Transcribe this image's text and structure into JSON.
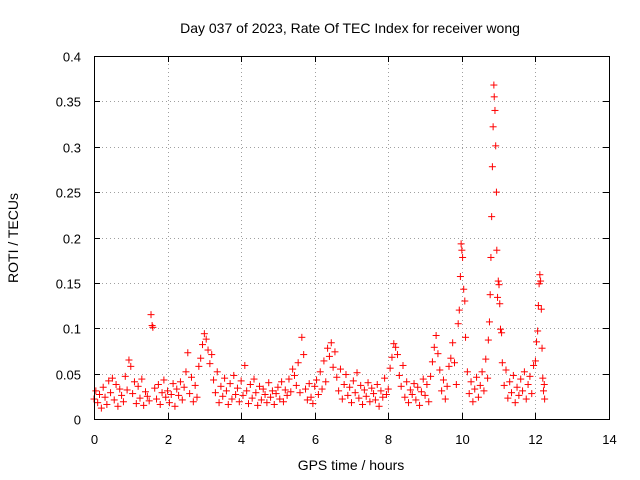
{
  "chart_data": {
    "type": "scatter",
    "title": "Day 037 of 2023, Rate Of TEC Index for receiver wong",
    "xlabel": "GPS time / hours",
    "ylabel": "ROTI / TECUs",
    "xlim": [
      0,
      14
    ],
    "ylim": [
      0,
      0.4
    ],
    "xticks": [
      0,
      2,
      4,
      6,
      8,
      10,
      12,
      14
    ],
    "yticks": [
      0,
      0.05,
      0.1,
      0.15,
      0.2,
      0.25,
      0.3,
      0.35,
      0.4
    ],
    "ytick_labels": [
      "0",
      "0.05",
      "0.1",
      "0.15",
      "0.2",
      "0.25",
      "0.3",
      "0.35",
      "0.4"
    ],
    "grid": true,
    "marker": "plus",
    "color": "#ff0000",
    "series": [
      {
        "points": [
          [
            0.0,
            0.022
          ],
          [
            0.05,
            0.031
          ],
          [
            0.1,
            0.018
          ],
          [
            0.15,
            0.027
          ],
          [
            0.2,
            0.012
          ],
          [
            0.25,
            0.035
          ],
          [
            0.3,
            0.024
          ],
          [
            0.35,
            0.016
          ],
          [
            0.4,
            0.042
          ],
          [
            0.45,
            0.029
          ],
          [
            0.5,
            0.045
          ],
          [
            0.55,
            0.021
          ],
          [
            0.6,
            0.038
          ],
          [
            0.65,
            0.014
          ],
          [
            0.7,
            0.033
          ],
          [
            0.75,
            0.026
          ],
          [
            0.8,
            0.019
          ],
          [
            0.85,
            0.047
          ],
          [
            0.9,
            0.032
          ],
          [
            0.95,
            0.065
          ],
          [
            1.0,
            0.058
          ],
          [
            1.05,
            0.028
          ],
          [
            1.1,
            0.041
          ],
          [
            1.15,
            0.017
          ],
          [
            1.2,
            0.036
          ],
          [
            1.25,
            0.023
          ],
          [
            1.3,
            0.044
          ],
          [
            1.35,
            0.015
          ],
          [
            1.4,
            0.03
          ],
          [
            1.45,
            0.025
          ],
          [
            1.5,
            0.02
          ],
          [
            1.55,
            0.115
          ],
          [
            1.58,
            0.103
          ],
          [
            1.6,
            0.101
          ],
          [
            1.65,
            0.034
          ],
          [
            1.7,
            0.022
          ],
          [
            1.75,
            0.038
          ],
          [
            1.8,
            0.016
          ],
          [
            1.85,
            0.029
          ],
          [
            1.9,
            0.043
          ],
          [
            1.95,
            0.024
          ],
          [
            2.0,
            0.031
          ],
          [
            2.05,
            0.018
          ],
          [
            2.1,
            0.027
          ],
          [
            2.15,
            0.039
          ],
          [
            2.2,
            0.014
          ],
          [
            2.25,
            0.033
          ],
          [
            2.3,
            0.026
          ],
          [
            2.35,
            0.041
          ],
          [
            2.4,
            0.021
          ],
          [
            2.45,
            0.035
          ],
          [
            2.5,
            0.052
          ],
          [
            2.55,
            0.073
          ],
          [
            2.6,
            0.028
          ],
          [
            2.65,
            0.046
          ],
          [
            2.7,
            0.019
          ],
          [
            2.75,
            0.037
          ],
          [
            2.8,
            0.024
          ],
          [
            2.85,
            0.058
          ],
          [
            2.9,
            0.067
          ],
          [
            2.95,
            0.082
          ],
          [
            3.0,
            0.094
          ],
          [
            3.05,
            0.088
          ],
          [
            3.1,
            0.076
          ],
          [
            3.15,
            0.061
          ],
          [
            3.2,
            0.071
          ],
          [
            3.25,
            0.043
          ],
          [
            3.3,
            0.029
          ],
          [
            3.35,
            0.052
          ],
          [
            3.4,
            0.018
          ],
          [
            3.45,
            0.036
          ],
          [
            3.5,
            0.025
          ],
          [
            3.55,
            0.045
          ],
          [
            3.6,
            0.031
          ],
          [
            3.65,
            0.016
          ],
          [
            3.7,
            0.039
          ],
          [
            3.75,
            0.022
          ],
          [
            3.8,
            0.048
          ],
          [
            3.85,
            0.027
          ],
          [
            3.9,
            0.034
          ],
          [
            3.95,
            0.019
          ],
          [
            4.0,
            0.042
          ],
          [
            4.05,
            0.026
          ],
          [
            4.1,
            0.059
          ],
          [
            4.15,
            0.031
          ],
          [
            4.2,
            0.017
          ],
          [
            4.25,
            0.038
          ],
          [
            4.3,
            0.023
          ],
          [
            4.35,
            0.044
          ],
          [
            4.4,
            0.029
          ],
          [
            4.45,
            0.015
          ],
          [
            4.5,
            0.036
          ],
          [
            4.55,
            0.021
          ],
          [
            4.6,
            0.033
          ],
          [
            4.65,
            0.027
          ],
          [
            4.7,
            0.018
          ],
          [
            4.75,
            0.04
          ],
          [
            4.8,
            0.024
          ],
          [
            4.85,
            0.031
          ],
          [
            4.9,
            0.016
          ],
          [
            4.95,
            0.028
          ],
          [
            5.0,
            0.035
          ],
          [
            5.05,
            0.022
          ],
          [
            5.1,
            0.041
          ],
          [
            5.15,
            0.019
          ],
          [
            5.2,
            0.032
          ],
          [
            5.25,
            0.026
          ],
          [
            5.3,
            0.044
          ],
          [
            5.35,
            0.03
          ],
          [
            5.4,
            0.055
          ],
          [
            5.45,
            0.048
          ],
          [
            5.5,
            0.037
          ],
          [
            5.55,
            0.062
          ],
          [
            5.6,
            0.029
          ],
          [
            5.65,
            0.09
          ],
          [
            5.7,
            0.071
          ],
          [
            5.75,
            0.033
          ],
          [
            5.8,
            0.021
          ],
          [
            5.85,
            0.039
          ],
          [
            5.9,
            0.024
          ],
          [
            5.95,
            0.017
          ],
          [
            6.0,
            0.036
          ],
          [
            6.05,
            0.043
          ],
          [
            6.1,
            0.027
          ],
          [
            6.15,
            0.052
          ],
          [
            6.2,
            0.033
          ],
          [
            6.25,
            0.064
          ],
          [
            6.3,
            0.041
          ],
          [
            6.35,
            0.078
          ],
          [
            6.4,
            0.069
          ],
          [
            6.45,
            0.084
          ],
          [
            6.5,
            0.057
          ],
          [
            6.55,
            0.074
          ],
          [
            6.6,
            0.046
          ],
          [
            6.65,
            0.031
          ],
          [
            6.7,
            0.055
          ],
          [
            6.75,
            0.022
          ],
          [
            6.8,
            0.038
          ],
          [
            6.85,
            0.049
          ],
          [
            6.9,
            0.026
          ],
          [
            6.95,
            0.035
          ],
          [
            7.0,
            0.018
          ],
          [
            7.05,
            0.042
          ],
          [
            7.1,
            0.029
          ],
          [
            7.15,
            0.051
          ],
          [
            7.2,
            0.023
          ],
          [
            7.25,
            0.037
          ],
          [
            7.3,
            0.016
          ],
          [
            7.35,
            0.032
          ],
          [
            7.4,
            0.025
          ],
          [
            7.45,
            0.04
          ],
          [
            7.5,
            0.019
          ],
          [
            7.55,
            0.034
          ],
          [
            7.6,
            0.028
          ],
          [
            7.65,
            0.021
          ],
          [
            7.7,
            0.038
          ],
          [
            7.75,
            0.014
          ],
          [
            7.8,
            0.031
          ],
          [
            7.85,
            0.024
          ],
          [
            7.9,
            0.045
          ],
          [
            7.95,
            0.027
          ],
          [
            8.0,
            0.033
          ],
          [
            8.05,
            0.056
          ],
          [
            8.1,
            0.068
          ],
          [
            8.15,
            0.083
          ],
          [
            8.2,
            0.079
          ],
          [
            8.25,
            0.071
          ],
          [
            8.3,
            0.048
          ],
          [
            8.35,
            0.036
          ],
          [
            8.4,
            0.059
          ],
          [
            8.45,
            0.024
          ],
          [
            8.5,
            0.041
          ],
          [
            8.55,
            0.018
          ],
          [
            8.6,
            0.032
          ],
          [
            8.65,
            0.027
          ],
          [
            8.7,
            0.039
          ],
          [
            8.75,
            0.021
          ],
          [
            8.8,
            0.035
          ],
          [
            8.85,
            0.015
          ],
          [
            8.9,
            0.03
          ],
          [
            8.95,
            0.044
          ],
          [
            9.0,
            0.026
          ],
          [
            9.05,
            0.038
          ],
          [
            9.1,
            0.019
          ],
          [
            9.15,
            0.047
          ],
          [
            9.2,
            0.063
          ],
          [
            9.25,
            0.079
          ],
          [
            9.3,
            0.092
          ],
          [
            9.35,
            0.072
          ],
          [
            9.4,
            0.054
          ],
          [
            9.45,
            0.031
          ],
          [
            9.5,
            0.043
          ],
          [
            9.55,
            0.022
          ],
          [
            9.6,
            0.036
          ],
          [
            9.65,
            0.058
          ],
          [
            9.7,
            0.067
          ],
          [
            9.75,
            0.084
          ],
          [
            9.8,
            0.062
          ],
          [
            9.85,
            0.038
          ],
          [
            9.9,
            0.105
          ],
          [
            9.93,
            0.12
          ],
          [
            9.96,
            0.157
          ],
          [
            9.98,
            0.193
          ],
          [
            10.0,
            0.186
          ],
          [
            10.02,
            0.178
          ],
          [
            10.05,
            0.143
          ],
          [
            10.08,
            0.13
          ],
          [
            10.1,
            0.09
          ],
          [
            10.15,
            0.052
          ],
          [
            10.2,
            0.028
          ],
          [
            10.25,
            0.041
          ],
          [
            10.3,
            0.019
          ],
          [
            10.35,
            0.033
          ],
          [
            10.4,
            0.046
          ],
          [
            10.45,
            0.024
          ],
          [
            10.5,
            0.037
          ],
          [
            10.55,
            0.052
          ],
          [
            10.6,
            0.031
          ],
          [
            10.65,
            0.066
          ],
          [
            10.7,
            0.045
          ],
          [
            10.72,
            0.087
          ],
          [
            10.75,
            0.107
          ],
          [
            10.77,
            0.137
          ],
          [
            10.79,
            0.178
          ],
          [
            10.81,
            0.223
          ],
          [
            10.83,
            0.278
          ],
          [
            10.85,
            0.322
          ],
          [
            10.87,
            0.368
          ],
          [
            10.88,
            0.355
          ],
          [
            10.9,
            0.34
          ],
          [
            10.92,
            0.301
          ],
          [
            10.94,
            0.25
          ],
          [
            10.95,
            0.186
          ],
          [
            10.97,
            0.134
          ],
          [
            10.99,
            0.152
          ],
          [
            11.01,
            0.148
          ],
          [
            11.03,
            0.127
          ],
          [
            11.05,
            0.099
          ],
          [
            11.08,
            0.095
          ],
          [
            11.1,
            0.062
          ],
          [
            11.15,
            0.037
          ],
          [
            11.2,
            0.054
          ],
          [
            11.25,
            0.023
          ],
          [
            11.3,
            0.041
          ],
          [
            11.35,
            0.029
          ],
          [
            11.4,
            0.048
          ],
          [
            11.45,
            0.018
          ],
          [
            11.5,
            0.035
          ],
          [
            11.55,
            0.026
          ],
          [
            11.6,
            0.044
          ],
          [
            11.65,
            0.031
          ],
          [
            11.7,
            0.052
          ],
          [
            11.75,
            0.022
          ],
          [
            11.8,
            0.038
          ],
          [
            11.85,
            0.047
          ],
          [
            11.9,
            0.028
          ],
          [
            11.95,
            0.059
          ],
          [
            12.0,
            0.064
          ],
          [
            12.03,
            0.085
          ],
          [
            12.06,
            0.097
          ],
          [
            12.08,
            0.125
          ],
          [
            12.1,
            0.149
          ],
          [
            12.12,
            0.159
          ],
          [
            12.14,
            0.152
          ],
          [
            12.16,
            0.121
          ],
          [
            12.18,
            0.078
          ],
          [
            12.2,
            0.045
          ],
          [
            12.22,
            0.031
          ],
          [
            12.24,
            0.038
          ],
          [
            12.25,
            0.022
          ]
        ]
      }
    ]
  }
}
